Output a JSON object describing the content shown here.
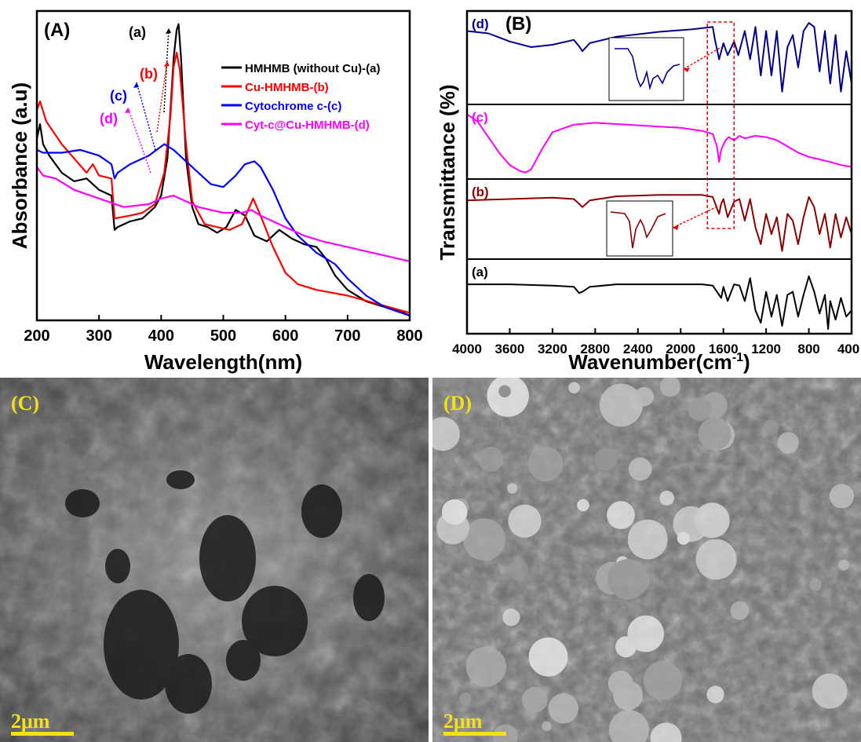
{
  "chart_data": [
    {
      "panel_label": "(A)",
      "type": "line",
      "xlabel": "Wavelength(nm)",
      "ylabel": "Absorbance (a.u)",
      "xlim": [
        200,
        800
      ],
      "ylim": [
        0,
        1.0
      ],
      "xticks": [
        200,
        300,
        400,
        500,
        600,
        700,
        800
      ],
      "y_ticks_shown": false,
      "legend_position": "top-right",
      "series": [
        {
          "name": "HMHMB (without Cu)-(a)",
          "label": "(a)",
          "color": "#000000",
          "x": [
            200,
            205,
            210,
            220,
            240,
            260,
            280,
            300,
            320,
            325,
            330,
            350,
            370,
            390,
            400,
            410,
            415,
            420,
            425,
            428,
            432,
            440,
            450,
            460,
            475,
            490,
            505,
            520,
            535,
            550,
            570,
            590,
            610,
            630,
            650,
            665,
            680,
            700,
            730,
            760,
            790,
            800
          ],
          "y": [
            0.62,
            0.67,
            0.6,
            0.56,
            0.5,
            0.47,
            0.48,
            0.44,
            0.42,
            0.3,
            0.31,
            0.33,
            0.34,
            0.38,
            0.42,
            0.55,
            0.72,
            0.9,
            1.0,
            1.02,
            0.9,
            0.55,
            0.38,
            0.32,
            0.31,
            0.29,
            0.31,
            0.37,
            0.35,
            0.28,
            0.26,
            0.3,
            0.27,
            0.25,
            0.24,
            0.2,
            0.14,
            0.09,
            0.05,
            0.03,
            0.01,
            0.0
          ]
        },
        {
          "name": "Cu-HMHMB-(b)",
          "label": "(b)",
          "color": "#ff0000",
          "x": [
            200,
            205,
            215,
            240,
            260,
            280,
            290,
            300,
            320,
            325,
            350,
            370,
            390,
            405,
            415,
            420,
            425,
            430,
            440,
            450,
            470,
            490,
            510,
            530,
            540,
            548,
            560,
            580,
            600,
            620,
            650,
            700,
            750,
            800
          ],
          "y": [
            0.72,
            0.75,
            0.68,
            0.6,
            0.55,
            0.5,
            0.53,
            0.49,
            0.48,
            0.34,
            0.35,
            0.36,
            0.39,
            0.5,
            0.7,
            0.87,
            0.92,
            0.86,
            0.6,
            0.4,
            0.32,
            0.31,
            0.3,
            0.32,
            0.37,
            0.41,
            0.35,
            0.24,
            0.15,
            0.11,
            0.09,
            0.07,
            0.04,
            0.01
          ]
        },
        {
          "name": "Cytochrome c-(c)",
          "label": "(c)",
          "color": "#0000ff",
          "x": [
            200,
            210,
            240,
            270,
            300,
            320,
            325,
            330,
            350,
            380,
            405,
            420,
            440,
            460,
            480,
            500,
            520,
            535,
            550,
            560,
            580,
            600,
            620,
            650,
            680,
            700,
            730,
            760,
            800
          ],
          "y": [
            0.58,
            0.57,
            0.57,
            0.58,
            0.56,
            0.53,
            0.48,
            0.5,
            0.53,
            0.56,
            0.6,
            0.58,
            0.54,
            0.5,
            0.46,
            0.45,
            0.49,
            0.53,
            0.54,
            0.52,
            0.44,
            0.34,
            0.28,
            0.22,
            0.18,
            0.13,
            0.07,
            0.03,
            0.0
          ]
        },
        {
          "name": "Cyt-c@Cu-HMHMB-(d)",
          "label": "(d)",
          "color": "#ff00ff",
          "x": [
            200,
            210,
            230,
            260,
            300,
            340,
            380,
            400,
            420,
            440,
            460,
            500,
            530,
            545,
            560,
            580,
            600,
            630,
            660,
            700,
            740,
            780,
            800
          ],
          "y": [
            0.52,
            0.49,
            0.48,
            0.44,
            0.41,
            0.38,
            0.39,
            0.41,
            0.42,
            0.4,
            0.38,
            0.36,
            0.36,
            0.37,
            0.35,
            0.33,
            0.31,
            0.28,
            0.26,
            0.24,
            0.22,
            0.2,
            0.19
          ]
        }
      ]
    },
    {
      "panel_label": "(B)",
      "type": "line",
      "xlabel": "Wavenumber(cm-1)",
      "xlabel_main": "Wavenumber(cm",
      "xlabel_sup": "-1",
      "xlabel_end": ")",
      "ylabel": "Transmittance (%)",
      "xlim": [
        4000,
        400
      ],
      "xticks": [
        4000,
        3600,
        3200,
        2800,
        2400,
        2000,
        1600,
        1200,
        800,
        400
      ],
      "stacked": true,
      "highlight_region_cm1": [
        1750,
        1500
      ],
      "series": [
        {
          "name": "(d)",
          "label": "(d)",
          "color": "#00008b",
          "x": [
            4000,
            3800,
            3600,
            3400,
            3200,
            3000,
            2950,
            2920,
            2850,
            2600,
            2200,
            1900,
            1700,
            1680,
            1640,
            1600,
            1560,
            1500,
            1460,
            1400,
            1350,
            1300,
            1250,
            1200,
            1150,
            1100,
            1050,
            1000,
            950,
            900,
            850,
            800,
            750,
            700,
            650,
            600,
            550,
            500,
            450,
            400
          ],
          "y": [
            0.85,
            0.82,
            0.72,
            0.65,
            0.68,
            0.74,
            0.66,
            0.6,
            0.7,
            0.78,
            0.84,
            0.87,
            0.9,
            0.75,
            0.5,
            0.7,
            0.55,
            0.72,
            0.55,
            0.85,
            0.5,
            0.9,
            0.3,
            0.85,
            0.3,
            0.85,
            0.1,
            0.65,
            0.8,
            0.4,
            0.85,
            0.95,
            0.9,
            0.35,
            0.85,
            0.2,
            0.8,
            0.1,
            0.6,
            0.2
          ]
        },
        {
          "name": "(c)",
          "label": "(c)",
          "color": "#ff00ff",
          "x": [
            4000,
            3900,
            3800,
            3700,
            3600,
            3500,
            3450,
            3400,
            3300,
            3200,
            3000,
            2800,
            2500,
            2200,
            2000,
            1800,
            1700,
            1660,
            1640,
            1620,
            1580,
            1550,
            1500,
            1450,
            1400,
            1300,
            1200,
            1100,
            1000,
            900,
            800,
            700,
            600,
            500,
            400
          ],
          "y": [
            0.97,
            0.85,
            0.6,
            0.35,
            0.15,
            0.05,
            0.03,
            0.08,
            0.4,
            0.68,
            0.8,
            0.83,
            0.8,
            0.77,
            0.75,
            0.7,
            0.65,
            0.45,
            0.2,
            0.4,
            0.55,
            0.6,
            0.55,
            0.62,
            0.58,
            0.62,
            0.6,
            0.55,
            0.45,
            0.35,
            0.28,
            0.24,
            0.2,
            0.15,
            0.12
          ]
        },
        {
          "name": "(b)",
          "label": "(b)",
          "color": "#8b0000",
          "x": [
            4000,
            3600,
            3200,
            3000,
            2950,
            2920,
            2850,
            2600,
            2200,
            1800,
            1700,
            1640,
            1620,
            1600,
            1560,
            1500,
            1450,
            1400,
            1350,
            1300,
            1250,
            1200,
            1150,
            1100,
            1050,
            1000,
            950,
            900,
            850,
            800,
            750,
            700,
            650,
            600,
            550,
            500,
            450,
            400
          ],
          "y": [
            0.8,
            0.82,
            0.84,
            0.82,
            0.75,
            0.7,
            0.8,
            0.86,
            0.88,
            0.88,
            0.85,
            0.6,
            0.75,
            0.82,
            0.55,
            0.78,
            0.82,
            0.5,
            0.82,
            0.4,
            0.15,
            0.6,
            0.3,
            0.55,
            0.05,
            0.6,
            0.5,
            0.15,
            0.55,
            0.85,
            0.7,
            0.3,
            0.6,
            0.1,
            0.6,
            0.25,
            0.55,
            0.3
          ]
        },
        {
          "name": "(a)",
          "label": "(a)",
          "color": "#000000",
          "x": [
            4000,
            3600,
            3200,
            3000,
            2950,
            2920,
            2850,
            2600,
            2200,
            1800,
            1700,
            1620,
            1600,
            1560,
            1500,
            1450,
            1400,
            1350,
            1300,
            1250,
            1200,
            1150,
            1100,
            1050,
            1000,
            950,
            900,
            850,
            800,
            750,
            700,
            650,
            620,
            600,
            550,
            500,
            450,
            400
          ],
          "y": [
            0.72,
            0.72,
            0.7,
            0.68,
            0.58,
            0.6,
            0.68,
            0.72,
            0.72,
            0.72,
            0.7,
            0.5,
            0.68,
            0.45,
            0.72,
            0.7,
            0.45,
            0.82,
            0.3,
            0.1,
            0.6,
            0.2,
            0.55,
            0.05,
            0.55,
            0.6,
            0.2,
            0.55,
            0.85,
            0.6,
            0.25,
            0.55,
            0.0,
            0.45,
            0.15,
            0.5,
            0.2,
            0.3
          ]
        }
      ]
    }
  ],
  "sem_panels": [
    {
      "panel_label": "(C)",
      "scale_bar": "2μm"
    },
    {
      "panel_label": "(D)",
      "scale_bar": "2μm"
    }
  ]
}
